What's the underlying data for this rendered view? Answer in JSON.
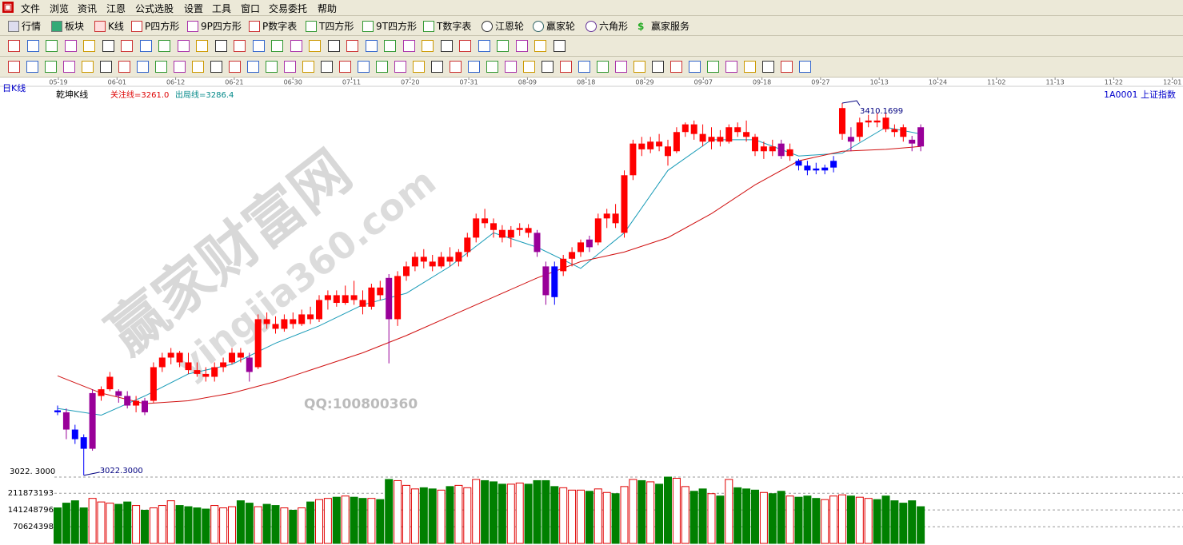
{
  "menu": [
    "文件",
    "浏览",
    "资讯",
    "江恩",
    "公式选股",
    "设置",
    "工具",
    "窗口",
    "交易委托",
    "帮助"
  ],
  "toolbar": [
    "行情",
    "板块",
    "K线",
    "P四方形",
    "9P四方形",
    "P数字表",
    "T四方形",
    "9T四方形",
    "T数字表",
    "江恩轮",
    "赢家轮",
    "六角形",
    "赢家服务"
  ],
  "chart_data": {
    "type": "candlestick",
    "period_label": "日K线",
    "indicator_name": "乾坤K线",
    "watch_line": "关注线=3261.0",
    "exit_line": "出局线=3286.4",
    "code": "1A0001",
    "index_name": "上证指数",
    "watermark": "赢家财富网",
    "watermark_url": "yingjia360.com",
    "watermark_qq": "QQ:100800360",
    "dates": [
      "05-19",
      "06-01",
      "06-12",
      "06-21",
      "06-30",
      "07-11",
      "07-20",
      "07-31",
      "08-09",
      "08-18",
      "08-29",
      "09-07",
      "09-18",
      "09-27",
      "10-13",
      "10-24",
      "11-02",
      "11-13",
      "11-22",
      "12-01"
    ],
    "ylim": [
      3018,
      3426
    ],
    "high_mark": {
      "value": 3410.1699,
      "label": "3410.1699"
    },
    "low_mark": {
      "value": 3022.3,
      "label": "3022.3000"
    },
    "volume_panel_label": "3022. 3000",
    "candles": [
      [
        3090,
        3095,
        3085,
        3088
      ],
      [
        3088,
        3092,
        3060,
        3070
      ],
      [
        3070,
        3075,
        3055,
        3060
      ],
      [
        3062,
        3065,
        3022.3,
        3050
      ],
      [
        3050,
        3112,
        3048,
        3108
      ],
      [
        3105,
        3115,
        3100,
        3112
      ],
      [
        3112,
        3130,
        3110,
        3125
      ],
      [
        3110,
        3112,
        3098,
        3105
      ],
      [
        3105,
        3110,
        3092,
        3095
      ],
      [
        3095,
        3105,
        3088,
        3100
      ],
      [
        3100,
        3103,
        3085,
        3088
      ],
      [
        3100,
        3140,
        3098,
        3135
      ],
      [
        3135,
        3150,
        3130,
        3145
      ],
      [
        3145,
        3155,
        3138,
        3150
      ],
      [
        3150,
        3152,
        3135,
        3140
      ],
      [
        3140,
        3150,
        3128,
        3132
      ],
      [
        3132,
        3140,
        3125,
        3128
      ],
      [
        3128,
        3135,
        3120,
        3125
      ],
      [
        3125,
        3140,
        3120,
        3135
      ],
      [
        3135,
        3145,
        3130,
        3140
      ],
      [
        3140,
        3155,
        3138,
        3150
      ],
      [
        3150,
        3155,
        3140,
        3145
      ],
      [
        3145,
        3150,
        3120,
        3130
      ],
      [
        3135,
        3190,
        3133,
        3185
      ],
      [
        3185,
        3192,
        3175,
        3180
      ],
      [
        3180,
        3188,
        3170,
        3175
      ],
      [
        3175,
        3190,
        3172,
        3185
      ],
      [
        3185,
        3192,
        3175,
        3180
      ],
      [
        3180,
        3195,
        3178,
        3190
      ],
      [
        3190,
        3198,
        3180,
        3185
      ],
      [
        3185,
        3210,
        3182,
        3205
      ],
      [
        3205,
        3215,
        3195,
        3210
      ],
      [
        3210,
        3215,
        3198,
        3202
      ],
      [
        3202,
        3220,
        3200,
        3210
      ],
      [
        3210,
        3225,
        3200,
        3205
      ],
      [
        3205,
        3215,
        3190,
        3198
      ],
      [
        3198,
        3222,
        3195,
        3218
      ],
      [
        3218,
        3225,
        3205,
        3210
      ],
      [
        3228,
        3232,
        3139,
        3185
      ],
      [
        3185,
        3235,
        3178,
        3230
      ],
      [
        3230,
        3245,
        3225,
        3240
      ],
      [
        3240,
        3255,
        3235,
        3250
      ],
      [
        3250,
        3258,
        3238,
        3245
      ],
      [
        3245,
        3252,
        3235,
        3240
      ],
      [
        3240,
        3255,
        3238,
        3250
      ],
      [
        3250,
        3260,
        3240,
        3245
      ],
      [
        3245,
        3258,
        3240,
        3255
      ],
      [
        3255,
        3275,
        3250,
        3270
      ],
      [
        3270,
        3295,
        3265,
        3290
      ],
      [
        3290,
        3300,
        3280,
        3285
      ],
      [
        3285,
        3290,
        3270,
        3278
      ],
      [
        3278,
        3283,
        3265,
        3270
      ],
      [
        3270,
        3282,
        3260,
        3278
      ],
      [
        3278,
        3285,
        3272,
        3280
      ],
      [
        3280,
        3284,
        3270,
        3275
      ],
      [
        3275,
        3278,
        3250,
        3255
      ],
      [
        3240,
        3245,
        3200,
        3210
      ],
      [
        3240,
        3245,
        3200,
        3208
      ],
      [
        3235,
        3252,
        3230,
        3248
      ],
      [
        3248,
        3260,
        3240,
        3255
      ],
      [
        3255,
        3268,
        3250,
        3265
      ],
      [
        3268,
        3272,
        3255,
        3260
      ],
      [
        3265,
        3295,
        3262,
        3290
      ],
      [
        3290,
        3300,
        3280,
        3295
      ],
      [
        3295,
        3305,
        3280,
        3285
      ],
      [
        3275,
        3340,
        3270,
        3335
      ],
      [
        3335,
        3372,
        3330,
        3368
      ],
      [
        3368,
        3375,
        3355,
        3362
      ],
      [
        3362,
        3375,
        3358,
        3370
      ],
      [
        3370,
        3378,
        3360,
        3365
      ],
      [
        3365,
        3372,
        3345,
        3355
      ],
      [
        3360,
        3385,
        3358,
        3380
      ],
      [
        3380,
        3390,
        3375,
        3388
      ],
      [
        3388,
        3392,
        3372,
        3378
      ],
      [
        3378,
        3388,
        3365,
        3370
      ],
      [
        3370,
        3385,
        3362,
        3375
      ],
      [
        3375,
        3382,
        3365,
        3370
      ],
      [
        3370,
        3388,
        3368,
        3385
      ],
      [
        3385,
        3390,
        3375,
        3380
      ],
      [
        3380,
        3392,
        3370,
        3375
      ],
      [
        3375,
        3378,
        3355,
        3360
      ],
      [
        3360,
        3370,
        3352,
        3365
      ],
      [
        3365,
        3372,
        3355,
        3360
      ],
      [
        3368,
        3372,
        3352,
        3355
      ],
      [
        3355,
        3368,
        3350,
        3362
      ],
      [
        3350,
        3352,
        3340,
        3345
      ],
      [
        3345,
        3350,
        3335,
        3340
      ],
      [
        3342,
        3348,
        3336,
        3340
      ],
      [
        3340,
        3346,
        3336,
        3343
      ],
      [
        3343,
        3355,
        3338,
        3350
      ],
      [
        3378,
        3410.1699,
        3372,
        3405
      ],
      [
        3375,
        3385,
        3360,
        3370
      ],
      [
        3375,
        3395,
        3370,
        3390
      ],
      [
        3390,
        3398,
        3385,
        3392
      ],
      [
        3392,
        3400,
        3385,
        3390
      ],
      [
        3395,
        3400,
        3380,
        3383
      ],
      [
        3383,
        3388,
        3375,
        3380
      ],
      [
        3385,
        3388,
        3370,
        3375
      ],
      [
        3372,
        3376,
        3360,
        3368
      ],
      [
        3385,
        3388,
        3360,
        3365
      ]
    ],
    "candle_colors": [
      "#00f",
      "#909",
      "#00f",
      "#00f",
      "#909",
      "#f00",
      "#f00",
      "#909",
      "#909",
      "#f00",
      "#909",
      "#f00",
      "#f00",
      "#f00",
      "#f00",
      "#f00",
      "#f00",
      "#f00",
      "#f00",
      "#f00",
      "#f00",
      "#f00",
      "#909",
      "#f00",
      "#f00",
      "#f00",
      "#f00",
      "#f00",
      "#f00",
      "#f00",
      "#f00",
      "#f00",
      "#f00",
      "#f00",
      "#f00",
      "#f00",
      "#f00",
      "#f00",
      "#909",
      "#f00",
      "#f00",
      "#f00",
      "#f00",
      "#f00",
      "#f00",
      "#f00",
      "#f00",
      "#f00",
      "#f00",
      "#f00",
      "#f00",
      "#f00",
      "#f00",
      "#f00",
      "#f00",
      "#909",
      "#909",
      "#00f",
      "#f00",
      "#f00",
      "#f00",
      "#909",
      "#f00",
      "#f00",
      "#f00",
      "#f00",
      "#f00",
      "#f00",
      "#f00",
      "#f00",
      "#f00",
      "#f00",
      "#f00",
      "#f00",
      "#f00",
      "#f00",
      "#f00",
      "#f00",
      "#f00",
      "#f00",
      "#f00",
      "#f00",
      "#f00",
      "#909",
      "#f00",
      "#00f",
      "#00f",
      "#00f",
      "#00f",
      "#00f",
      "#f00",
      "#909",
      "#f00",
      "#f00",
      "#f00",
      "#f00",
      "#f00",
      "#f00",
      "#909",
      "#909"
    ],
    "lines": [
      {
        "color": "#1b9cb8",
        "x": [
          0,
          5,
          10,
          15,
          20,
          25,
          30,
          35,
          40,
          45,
          50,
          55,
          60,
          65,
          70,
          75,
          80,
          85,
          90,
          95,
          99
        ],
        "values": [
          3092,
          3085,
          3105,
          3128,
          3138,
          3160,
          3178,
          3200,
          3212,
          3240,
          3275,
          3260,
          3238,
          3275,
          3340,
          3372,
          3372,
          3355,
          3358,
          3385,
          3378
        ]
      },
      {
        "color": "#d01010",
        "x": [
          0,
          5,
          10,
          15,
          20,
          25,
          30,
          35,
          40,
          45,
          50,
          55,
          60,
          65,
          70,
          75,
          80,
          85,
          90,
          95,
          99
        ],
        "values": [
          3126,
          3108,
          3097,
          3100,
          3108,
          3120,
          3135,
          3150,
          3168,
          3188,
          3208,
          3228,
          3245,
          3255,
          3270,
          3295,
          3325,
          3350,
          3360,
          3362,
          3365
        ]
      }
    ],
    "volume": {
      "up_color": "#e00000",
      "down_color": "#008000",
      "ylim": [
        0,
        280000000
      ],
      "yticks": [
        70624398,
        141248796,
        211873193
      ],
      "values": [
        150000000,
        170000000,
        180000000,
        150000000,
        190000000,
        175000000,
        170000000,
        165000000,
        175000000,
        160000000,
        140000000,
        150000000,
        160000000,
        180000000,
        160000000,
        155000000,
        150000000,
        145000000,
        160000000,
        150000000,
        155000000,
        180000000,
        170000000,
        155000000,
        165000000,
        160000000,
        150000000,
        140000000,
        150000000,
        175000000,
        185000000,
        190000000,
        195000000,
        200000000,
        195000000,
        190000000,
        190000000,
        185000000,
        270000000,
        265000000,
        245000000,
        230000000,
        235000000,
        230000000,
        225000000,
        240000000,
        245000000,
        235000000,
        270000000,
        265000000,
        260000000,
        250000000,
        250000000,
        255000000,
        250000000,
        265000000,
        265000000,
        240000000,
        235000000,
        225000000,
        225000000,
        220000000,
        230000000,
        215000000,
        210000000,
        240000000,
        270000000,
        265000000,
        260000000,
        250000000,
        280000000,
        275000000,
        240000000,
        220000000,
        230000000,
        210000000,
        200000000,
        270000000,
        235000000,
        230000000,
        225000000,
        215000000,
        210000000,
        220000000,
        200000000,
        195000000,
        200000000,
        190000000,
        185000000,
        200000000,
        205000000,
        200000000,
        195000000,
        190000000,
        185000000,
        200000000,
        180000000,
        170000000,
        180000000,
        155000000
      ]
    }
  }
}
